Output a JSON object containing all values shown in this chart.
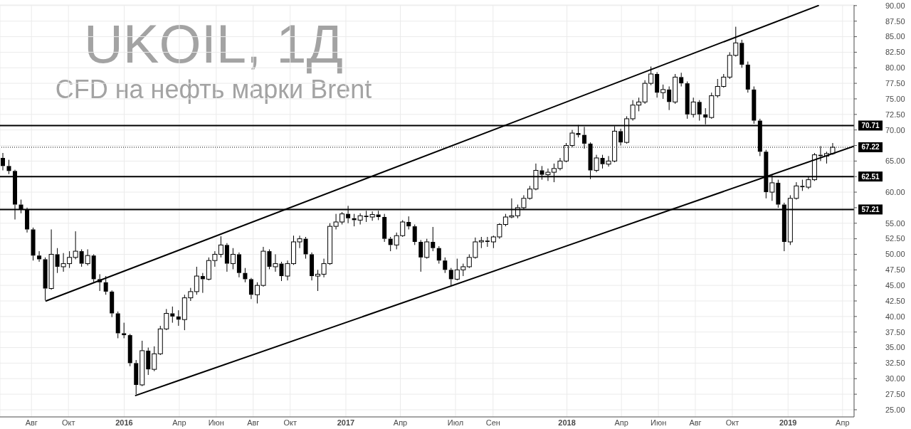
{
  "chart_data": {
    "type": "candlestick",
    "title": "UKOIL, 1Д",
    "subtitle": "CFD на нефть марки Brent",
    "series": [
      {
        "color": "#000000",
        "x": [
          "2015-06-15",
          "2015-06-25",
          "2015-07-05",
          "2015-07-15",
          "2015-07-25",
          "2015-08-04",
          "2015-08-14",
          "2015-08-24",
          "2015-09-03",
          "2015-09-13",
          "2015-09-23",
          "2015-10-03",
          "2015-10-13",
          "2015-10-23",
          "2015-11-02",
          "2015-11-12",
          "2015-11-22",
          "2015-12-02",
          "2015-12-12",
          "2015-12-22",
          "2016-01-01",
          "2016-01-11",
          "2016-01-21",
          "2016-01-31",
          "2016-02-10",
          "2016-02-20",
          "2016-03-01",
          "2016-03-11",
          "2016-03-21",
          "2016-03-31",
          "2016-04-10",
          "2016-04-20",
          "2016-04-30",
          "2016-05-10",
          "2016-05-20",
          "2016-05-30",
          "2016-06-09",
          "2016-06-19",
          "2016-06-29",
          "2016-07-09",
          "2016-07-19",
          "2016-07-29",
          "2016-08-08",
          "2016-08-18",
          "2016-08-28",
          "2016-09-07",
          "2016-09-17",
          "2016-09-27",
          "2016-10-07",
          "2016-10-17",
          "2016-10-27",
          "2016-11-06",
          "2016-11-16",
          "2016-11-26",
          "2016-12-06",
          "2016-12-16",
          "2016-12-26",
          "2017-01-05",
          "2017-01-15",
          "2017-01-25",
          "2017-02-04",
          "2017-02-14",
          "2017-02-24",
          "2017-03-06",
          "2017-03-16",
          "2017-03-26",
          "2017-04-05",
          "2017-04-15",
          "2017-04-25",
          "2017-05-05",
          "2017-05-15",
          "2017-05-25",
          "2017-06-04",
          "2017-06-14",
          "2017-06-24",
          "2017-07-04",
          "2017-07-14",
          "2017-07-24",
          "2017-08-03",
          "2017-08-13",
          "2017-08-23",
          "2017-09-02",
          "2017-09-12",
          "2017-09-22",
          "2017-10-02",
          "2017-10-12",
          "2017-10-22",
          "2017-11-01",
          "2017-11-11",
          "2017-11-21",
          "2017-12-01",
          "2017-12-11",
          "2017-12-21",
          "2017-12-31",
          "2018-01-10",
          "2018-01-20",
          "2018-01-30",
          "2018-02-09",
          "2018-02-19",
          "2018-03-01",
          "2018-03-11",
          "2018-03-21",
          "2018-03-31",
          "2018-04-10",
          "2018-04-20",
          "2018-04-30",
          "2018-05-10",
          "2018-05-20",
          "2018-05-30",
          "2018-06-09",
          "2018-06-19",
          "2018-06-29",
          "2018-07-09",
          "2018-07-19",
          "2018-07-29",
          "2018-08-08",
          "2018-08-18",
          "2018-08-28",
          "2018-09-07",
          "2018-09-17",
          "2018-09-27",
          "2018-10-07",
          "2018-10-17",
          "2018-10-27",
          "2018-11-06",
          "2018-11-16",
          "2018-11-26",
          "2018-12-06",
          "2018-12-16",
          "2018-12-26",
          "2019-01-05",
          "2019-01-15",
          "2019-01-25",
          "2019-02-04",
          "2019-02-14",
          "2019-02-24",
          "2019-03-06",
          "2019-03-16"
        ],
        "ohlc": [
          [
            65.5,
            66.3,
            63.5,
            64.2
          ],
          [
            64.2,
            65.2,
            62.9,
            63.4
          ],
          [
            63.4,
            63.6,
            55.6,
            58.0
          ],
          [
            58.0,
            58.8,
            56.6,
            57.2
          ],
          [
            57.2,
            57.5,
            53.5,
            54.0
          ],
          [
            54.0,
            54.3,
            49.0,
            49.8
          ],
          [
            49.8,
            50.5,
            48.8,
            49.2
          ],
          [
            49.2,
            49.5,
            42.6,
            44.5
          ],
          [
            44.5,
            54.0,
            44.3,
            50.0
          ],
          [
            50.0,
            51.0,
            47.0,
            48.0
          ],
          [
            48.0,
            50.2,
            47.2,
            48.5
          ],
          [
            48.5,
            50.5,
            47.8,
            49.5
          ],
          [
            49.5,
            53.7,
            49.2,
            50.5
          ],
          [
            50.5,
            50.8,
            48.0,
            48.5
          ],
          [
            48.5,
            50.8,
            48.2,
            49.8
          ],
          [
            49.8,
            50.0,
            45.5,
            46.0
          ],
          [
            46.0,
            46.8,
            44.1,
            45.5
          ],
          [
            45.5,
            46.5,
            43.5,
            44.0
          ],
          [
            44.0,
            44.2,
            39.9,
            40.5
          ],
          [
            40.5,
            40.8,
            36.5,
            37.3
          ],
          [
            37.3,
            39.0,
            36.5,
            37.0
          ],
          [
            37.0,
            37.2,
            32.0,
            32.5
          ],
          [
            32.5,
            33.0,
            27.5,
            29.0
          ],
          [
            29.0,
            36.1,
            28.8,
            34.5
          ],
          [
            34.5,
            35.0,
            30.6,
            31.5
          ],
          [
            31.5,
            35.2,
            31.2,
            34.0
          ],
          [
            34.0,
            38.5,
            33.8,
            38.0
          ],
          [
            38.0,
            41.2,
            37.8,
            40.5
          ],
          [
            40.5,
            41.6,
            39.0,
            40.0
          ],
          [
            40.0,
            41.0,
            38.5,
            39.5
          ],
          [
            39.5,
            43.5,
            37.8,
            43.0
          ],
          [
            43.0,
            44.6,
            42.5,
            44.0
          ],
          [
            44.0,
            48.0,
            43.5,
            46.5
          ],
          [
            46.5,
            47.0,
            43.8,
            46.0
          ],
          [
            46.0,
            49.5,
            45.8,
            49.0
          ],
          [
            49.0,
            50.5,
            48.0,
            50.0
          ],
          [
            50.0,
            52.9,
            49.5,
            51.5
          ],
          [
            51.5,
            51.8,
            47.2,
            48.5
          ],
          [
            48.5,
            51.0,
            47.6,
            50.0
          ],
          [
            50.0,
            50.3,
            46.3,
            47.0
          ],
          [
            47.0,
            47.8,
            45.5,
            46.0
          ],
          [
            46.0,
            46.2,
            42.8,
            43.5
          ],
          [
            43.5,
            45.5,
            42.1,
            45.0
          ],
          [
            45.0,
            51.2,
            44.8,
            50.5
          ],
          [
            50.5,
            50.8,
            47.6,
            48.0
          ],
          [
            48.0,
            50.0,
            47.2,
            48.5
          ],
          [
            48.5,
            48.8,
            45.7,
            46.5
          ],
          [
            46.5,
            49.0,
            45.8,
            48.5
          ],
          [
            48.5,
            53.0,
            48.3,
            52.0
          ],
          [
            52.0,
            53.0,
            51.0,
            52.5
          ],
          [
            52.5,
            52.8,
            49.3,
            50.0
          ],
          [
            50.0,
            50.3,
            45.8,
            46.5
          ],
          [
            46.5,
            47.5,
            44.1,
            46.8
          ],
          [
            46.8,
            49.3,
            46.3,
            48.5
          ],
          [
            48.5,
            55.0,
            48.3,
            54.5
          ],
          [
            54.5,
            56.5,
            54.0,
            55.2
          ],
          [
            55.2,
            56.8,
            54.8,
            56.5
          ],
          [
            56.5,
            57.8,
            55.0,
            55.8
          ],
          [
            55.8,
            56.5,
            54.5,
            55.5
          ],
          [
            55.5,
            56.6,
            54.8,
            56.2
          ],
          [
            56.2,
            57.0,
            55.2,
            56.0
          ],
          [
            56.0,
            56.9,
            55.4,
            56.4
          ],
          [
            56.4,
            57.0,
            55.5,
            56.0
          ],
          [
            56.0,
            56.5,
            52.0,
            52.5
          ],
          [
            52.5,
            52.8,
            50.5,
            51.5
          ],
          [
            51.5,
            53.5,
            50.8,
            53.0
          ],
          [
            53.0,
            55.5,
            52.8,
            55.2
          ],
          [
            55.2,
            56.1,
            54.0,
            54.5
          ],
          [
            54.5,
            54.8,
            51.5,
            52.0
          ],
          [
            52.0,
            52.3,
            47.2,
            49.5
          ],
          [
            49.5,
            52.5,
            49.3,
            52.0
          ],
          [
            52.0,
            54.4,
            50.5,
            51.0
          ],
          [
            51.0,
            51.3,
            48.5,
            49.0
          ],
          [
            49.0,
            49.5,
            47.0,
            47.5
          ],
          [
            47.5,
            47.8,
            45.0,
            46.0
          ],
          [
            46.0,
            49.3,
            45.8,
            47.5
          ],
          [
            47.5,
            48.5,
            46.5,
            48.0
          ],
          [
            48.0,
            50.0,
            47.8,
            49.5
          ],
          [
            49.5,
            52.7,
            49.3,
            52.0
          ],
          [
            52.0,
            52.8,
            51.0,
            52.2
          ],
          [
            52.2,
            52.8,
            51.2,
            52.0
          ],
          [
            52.0,
            53.0,
            51.0,
            52.8
          ],
          [
            52.8,
            55.0,
            52.5,
            54.8
          ],
          [
            54.8,
            56.5,
            54.5,
            56.0
          ],
          [
            56.0,
            59.0,
            55.8,
            56.2
          ],
          [
            56.2,
            58.0,
            55.8,
            57.5
          ],
          [
            57.5,
            59.5,
            57.2,
            59.0
          ],
          [
            59.0,
            61.0,
            58.8,
            60.5
          ],
          [
            60.5,
            64.6,
            60.3,
            63.5
          ],
          [
            63.5,
            64.2,
            62.0,
            62.8
          ],
          [
            62.8,
            63.8,
            61.8,
            63.2
          ],
          [
            63.2,
            64.6,
            61.6,
            63.8
          ],
          [
            63.8,
            65.5,
            63.5,
            65.0
          ],
          [
            65.0,
            67.9,
            64.8,
            67.5
          ],
          [
            67.5,
            70.0,
            67.2,
            69.5
          ],
          [
            69.5,
            70.8,
            68.8,
            69.2
          ],
          [
            69.2,
            70.5,
            67.0,
            67.8
          ],
          [
            67.8,
            68.0,
            62.1,
            63.5
          ],
          [
            63.5,
            66.0,
            63.2,
            65.5
          ],
          [
            65.5,
            66.0,
            63.8,
            64.5
          ],
          [
            64.5,
            65.8,
            64.1,
            65.0
          ],
          [
            65.0,
            70.6,
            64.8,
            69.8
          ],
          [
            69.8,
            70.2,
            67.5,
            68.0
          ],
          [
            68.0,
            72.2,
            67.8,
            71.8
          ],
          [
            71.8,
            74.8,
            71.5,
            74.0
          ],
          [
            74.0,
            75.2,
            73.0,
            74.5
          ],
          [
            74.5,
            78.0,
            74.2,
            77.5
          ],
          [
            77.5,
            80.2,
            77.2,
            79.0
          ],
          [
            79.0,
            79.3,
            75.2,
            76.0
          ],
          [
            76.0,
            77.3,
            75.0,
            76.5
          ],
          [
            76.5,
            77.0,
            73.2,
            74.5
          ],
          [
            74.5,
            79.0,
            74.2,
            78.5
          ],
          [
            78.5,
            79.2,
            77.0,
            77.5
          ],
          [
            77.5,
            77.8,
            71.8,
            72.5
          ],
          [
            72.5,
            75.2,
            72.0,
            74.5
          ],
          [
            74.5,
            74.8,
            71.5,
            72.5
          ],
          [
            72.5,
            73.5,
            70.9,
            72.0
          ],
          [
            72.0,
            76.0,
            71.8,
            75.5
          ],
          [
            75.5,
            78.2,
            75.2,
            77.0
          ],
          [
            77.0,
            79.0,
            76.8,
            78.5
          ],
          [
            78.5,
            82.5,
            78.2,
            82.0
          ],
          [
            82.0,
            86.6,
            81.8,
            84.0
          ],
          [
            84.0,
            84.5,
            80.0,
            80.5
          ],
          [
            80.5,
            81.0,
            76.0,
            76.5
          ],
          [
            76.5,
            77.0,
            71.0,
            71.5
          ],
          [
            71.5,
            71.8,
            65.8,
            66.5
          ],
          [
            66.5,
            66.8,
            59.0,
            60.0
          ],
          [
            60.0,
            62.8,
            58.6,
            61.5
          ],
          [
            61.5,
            62.0,
            57.5,
            58.0
          ],
          [
            58.0,
            58.3,
            50.5,
            52.0
          ],
          [
            52.0,
            59.5,
            51.5,
            59.0
          ],
          [
            59.0,
            61.6,
            58.8,
            61.0
          ],
          [
            61.0,
            62.0,
            60.2,
            60.8
          ],
          [
            60.8,
            62.5,
            60.5,
            62.0
          ],
          [
            62.0,
            66.3,
            61.8,
            66.0
          ],
          [
            66.0,
            67.4,
            65.0,
            65.8
          ],
          [
            65.8,
            66.5,
            64.6,
            66.2
          ],
          [
            66.2,
            67.9,
            66.0,
            67.22
          ]
        ]
      },
      {
        "type": "line",
        "color": "#000000",
        "x": [
          "2015-08-25",
          "2019-02-20"
        ],
        "values": [
          42.5,
          90.0
        ]
      },
      {
        "type": "line",
        "color": "#000000",
        "x": [
          "2016-01-20",
          "2019-04-20"
        ],
        "values": [
          27.3,
          67.4
        ]
      }
    ],
    "xlim": [
      "2015-06-10",
      "2019-04-20"
    ],
    "xticks": [
      {
        "value": "2015-08-01",
        "label": "Авг"
      },
      {
        "value": "2015-10-01",
        "label": "Окт"
      },
      {
        "value": "2016-01-01",
        "label": "2016"
      },
      {
        "value": "2016-04-01",
        "label": "Апр"
      },
      {
        "value": "2016-06-01",
        "label": "Июн"
      },
      {
        "value": "2016-08-01",
        "label": "Авг"
      },
      {
        "value": "2016-10-01",
        "label": "Окт"
      },
      {
        "value": "2017-01-01",
        "label": "2017"
      },
      {
        "value": "2017-04-01",
        "label": "Апр"
      },
      {
        "value": "2017-07-01",
        "label": "Июл"
      },
      {
        "value": "2017-09-01",
        "label": "Сен"
      },
      {
        "value": "2018-01-01",
        "label": "2018"
      },
      {
        "value": "2018-04-01",
        "label": "Апр"
      },
      {
        "value": "2018-06-01",
        "label": "Июн"
      },
      {
        "value": "2018-08-01",
        "label": "Авг"
      },
      {
        "value": "2018-10-01",
        "label": "Окт"
      },
      {
        "value": "2019-01-01",
        "label": "2019"
      },
      {
        "value": "2019-04-01",
        "label": "Апр"
      }
    ],
    "ylim": [
      23.85,
      90.1
    ],
    "yticks": [
      {
        "value": 25,
        "label": "25.00"
      },
      {
        "value": 27.5,
        "label": "27.50"
      },
      {
        "value": 30,
        "label": "30.00"
      },
      {
        "value": 32.5,
        "label": "32.50"
      },
      {
        "value": 35,
        "label": "35.00"
      },
      {
        "value": 37.5,
        "label": "37.50"
      },
      {
        "value": 40,
        "label": "40.00"
      },
      {
        "value": 42.5,
        "label": "42.50"
      },
      {
        "value": 45,
        "label": "45.00"
      },
      {
        "value": 47.5,
        "label": "47.50"
      },
      {
        "value": 50,
        "label": "50.00"
      },
      {
        "value": 52.5,
        "label": "52.50"
      },
      {
        "value": 55,
        "label": "55.00"
      },
      {
        "value": 57.5,
        "label": null
      },
      {
        "value": 60,
        "label": "60.00"
      },
      {
        "value": 62.5,
        "label": null
      },
      {
        "value": 65,
        "label": "65.00"
      },
      {
        "value": 67.5,
        "label": null
      },
      {
        "value": 70,
        "label": "70.00"
      },
      {
        "value": 72.5,
        "label": "72.50"
      },
      {
        "value": 75,
        "label": "75.00"
      },
      {
        "value": 77.5,
        "label": "77.50"
      },
      {
        "value": 80,
        "label": "80.00"
      },
      {
        "value": 82.5,
        "label": "82.50"
      },
      {
        "value": 85,
        "label": "85.00"
      },
      {
        "value": 87.5,
        "label": "87.50"
      },
      {
        "value": 90,
        "label": "90.00"
      }
    ],
    "grid": true,
    "ref_lines": [
      {
        "axis": "y",
        "value": 70.71,
        "label": "70.71",
        "color": "#000000"
      },
      {
        "axis": "y",
        "value": 67.22,
        "label": "67.22",
        "color": "#000000",
        "line_style": "dotted"
      },
      {
        "axis": "y",
        "value": 62.51,
        "label": "62.51",
        "color": "#000000"
      },
      {
        "axis": "y",
        "value": 57.21,
        "label": "57.21",
        "color": "#000000"
      }
    ]
  }
}
